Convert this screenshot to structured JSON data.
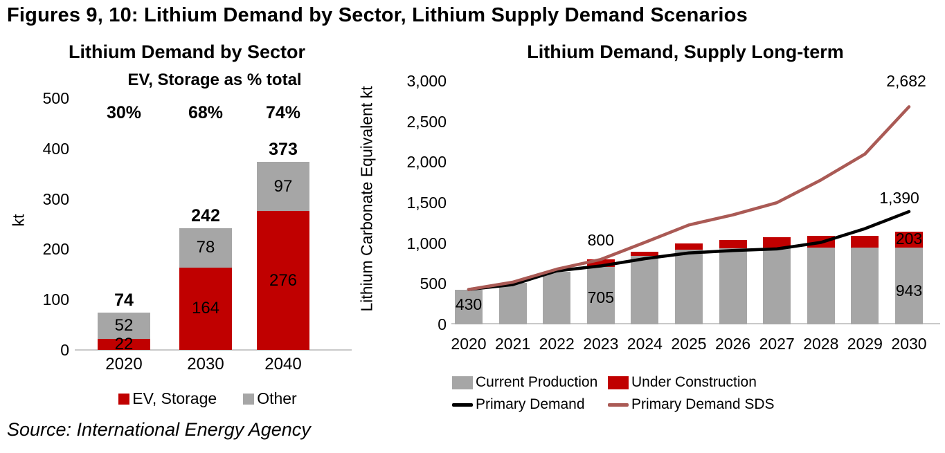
{
  "page": {
    "title": "Figures 9, 10: Lithium Demand by Sector, Lithium Supply Demand Scenarios",
    "source": "Source: International Energy Agency"
  },
  "colors": {
    "ev_red": "#C00000",
    "other_gray": "#A6A6A6",
    "demand_black": "#000000",
    "sds_red": "#AA5A55",
    "axis_gray": "#C9C9C9"
  },
  "chart_data": [
    {
      "type": "bar",
      "title": "Lithium Demand by Sector",
      "subtitle": "EV, Storage as % total",
      "ylabel": "kt",
      "ylim": [
        0,
        500
      ],
      "yticks": [
        0,
        100,
        200,
        300,
        400,
        500
      ],
      "categories": [
        "2020",
        "2030",
        "2040"
      ],
      "series": [
        {
          "name": "EV, Storage",
          "color_key": "ev_red",
          "values": [
            22,
            164,
            276
          ]
        },
        {
          "name": "Other",
          "color_key": "other_gray",
          "values": [
            52,
            78,
            97
          ]
        }
      ],
      "totals": [
        74,
        242,
        373
      ],
      "pct_labels": [
        "30%",
        "68%",
        "74%"
      ],
      "legend": [
        {
          "label": "EV, Storage",
          "color_key": "ev_red",
          "swatch": "rect"
        },
        {
          "label": "Other",
          "color_key": "other_gray",
          "swatch": "rect"
        }
      ],
      "grid": false,
      "legend_position": "bottom"
    },
    {
      "type": "bar+line",
      "title": "Lithium Demand, Supply Long-term",
      "ylabel": "Lithium Carbonate Equivalent kt",
      "ylim": [
        0,
        3000
      ],
      "yticks": [
        0,
        500,
        1000,
        1500,
        2000,
        2500,
        3000
      ],
      "ytick_labels": [
        "0",
        "500",
        "1,000",
        "1,500",
        "2,000",
        "2,500",
        "3,000"
      ],
      "categories": [
        "2020",
        "2021",
        "2022",
        "2023",
        "2024",
        "2025",
        "2026",
        "2027",
        "2028",
        "2029",
        "2030"
      ],
      "bar_series": [
        {
          "name": "Current Production",
          "color_key": "other_gray",
          "values": [
            430,
            510,
            650,
            705,
            840,
            920,
            940,
            945,
            950,
            950,
            943
          ]
        },
        {
          "name": "Under Construction",
          "color_key": "ev_red",
          "values": [
            0,
            0,
            0,
            95,
            55,
            75,
            100,
            130,
            140,
            145,
            203
          ]
        }
      ],
      "line_series": [
        {
          "name": "Primary Demand",
          "color_key": "demand_black",
          "values": [
            430,
            490,
            660,
            720,
            810,
            880,
            910,
            930,
            1010,
            1180,
            1390
          ]
        },
        {
          "name": "Primary Demand SDS",
          "color_key": "sds_red",
          "values": [
            430,
            520,
            680,
            800,
            1010,
            1225,
            1350,
            1500,
            1780,
            2100,
            2682
          ]
        }
      ],
      "point_labels": [
        {
          "text": "430",
          "year": "2020",
          "v": 250
        },
        {
          "text": "705",
          "year": "2023",
          "v": 330
        },
        {
          "text": "800",
          "year": "2023",
          "v": 1040
        },
        {
          "text": "943",
          "year": "2030",
          "v": 420
        },
        {
          "text": "203",
          "year": "2030",
          "v": 1055
        },
        {
          "text": "1,390",
          "year": "2030",
          "v": 1560,
          "dx": -14
        },
        {
          "text": "2,682",
          "year": "2030",
          "v": 3000,
          "dx": -4
        }
      ],
      "legend": [
        {
          "label": "Current Production",
          "color_key": "other_gray",
          "swatch": "rect"
        },
        {
          "label": "Under Construction",
          "color_key": "ev_red",
          "swatch": "rect"
        },
        {
          "label": "Primary Demand",
          "color_key": "demand_black",
          "swatch": "line"
        },
        {
          "label": "Primary Demand SDS",
          "color_key": "sds_red",
          "swatch": "line"
        }
      ],
      "grid": false,
      "legend_position": "bottom"
    }
  ]
}
